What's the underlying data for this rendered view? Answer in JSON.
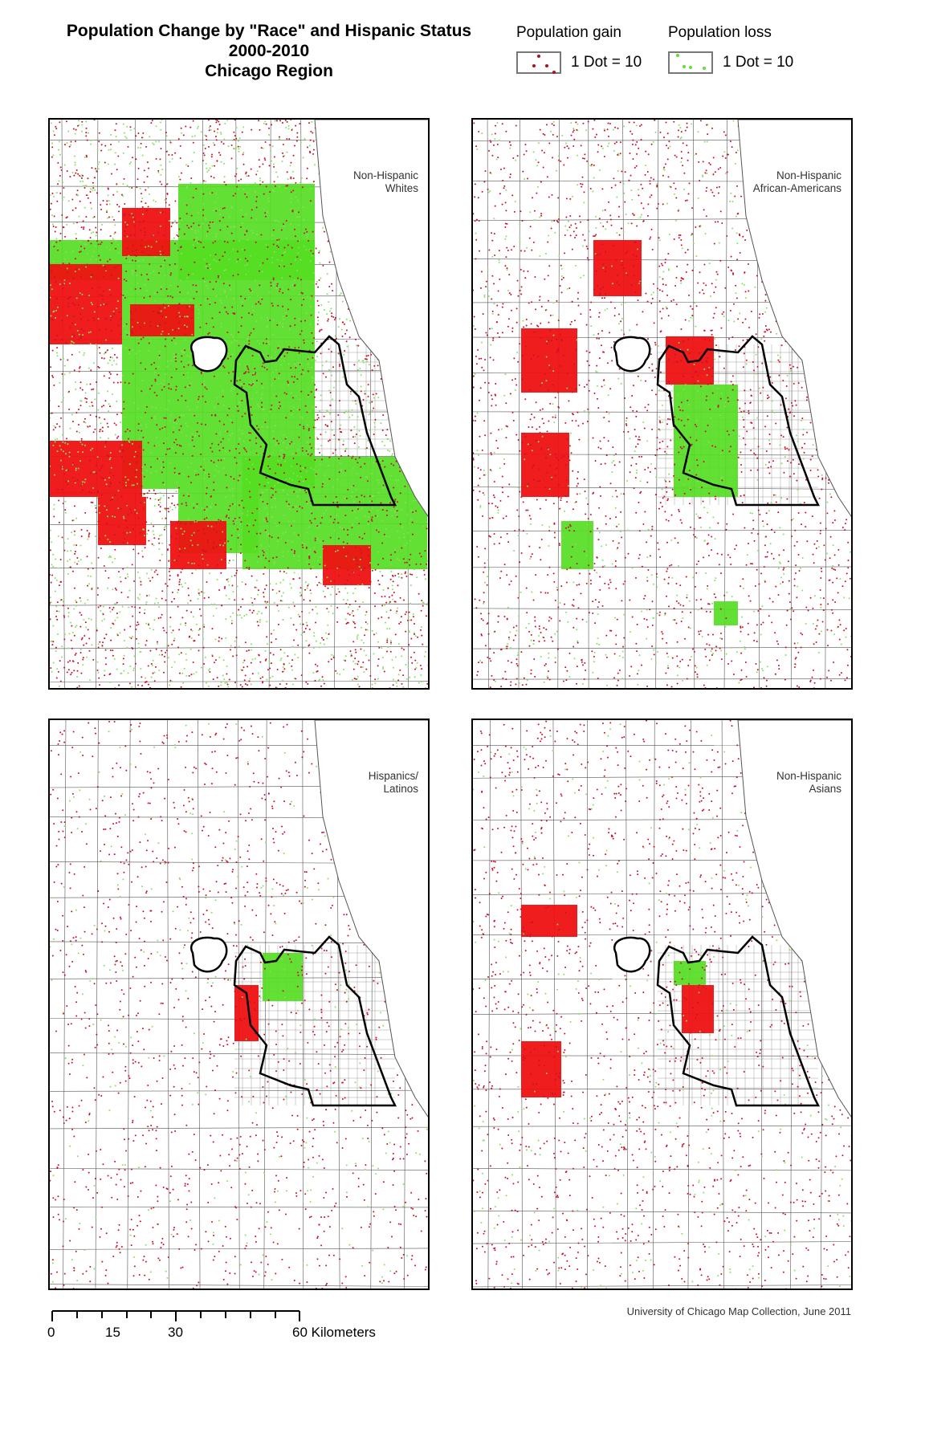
{
  "title": {
    "line1": "Population Change by \"Race\" and Hispanic Status",
    "line2": "2000-2010",
    "line3": "Chicago Region"
  },
  "legend": {
    "gain": {
      "heading": "Population gain",
      "value": "1 Dot = 10",
      "color": "#c8102e"
    },
    "loss": {
      "heading": "Population loss",
      "value": "1 Dot = 10",
      "color": "#66dd33"
    }
  },
  "panels": [
    {
      "label": "Non-Hispanic\nWhites",
      "gain_density": "very high",
      "loss_density": "very high"
    },
    {
      "label": "Non-Hispanic\nAfrican-Americans",
      "gain_density": "high",
      "loss_density": "medium"
    },
    {
      "label": "Hispanics/\nLatinos",
      "gain_density": "medium",
      "loss_density": "low"
    },
    {
      "label": "Non-Hispanic\nAsians",
      "gain_density": "medium",
      "loss_density": "low"
    }
  ],
  "scale": {
    "ticks": [
      "0",
      "15",
      "30",
      "60 Kilometers"
    ]
  },
  "credit": "University of Chicago Map Collection, June 2011",
  "colors": {
    "gain_fill": "#ee1111",
    "gain_dot": "#c8102e",
    "loss_fill": "#55dd22",
    "loss_dot": "#88e060",
    "boundary": "#555555",
    "city_outline": "#000000"
  }
}
